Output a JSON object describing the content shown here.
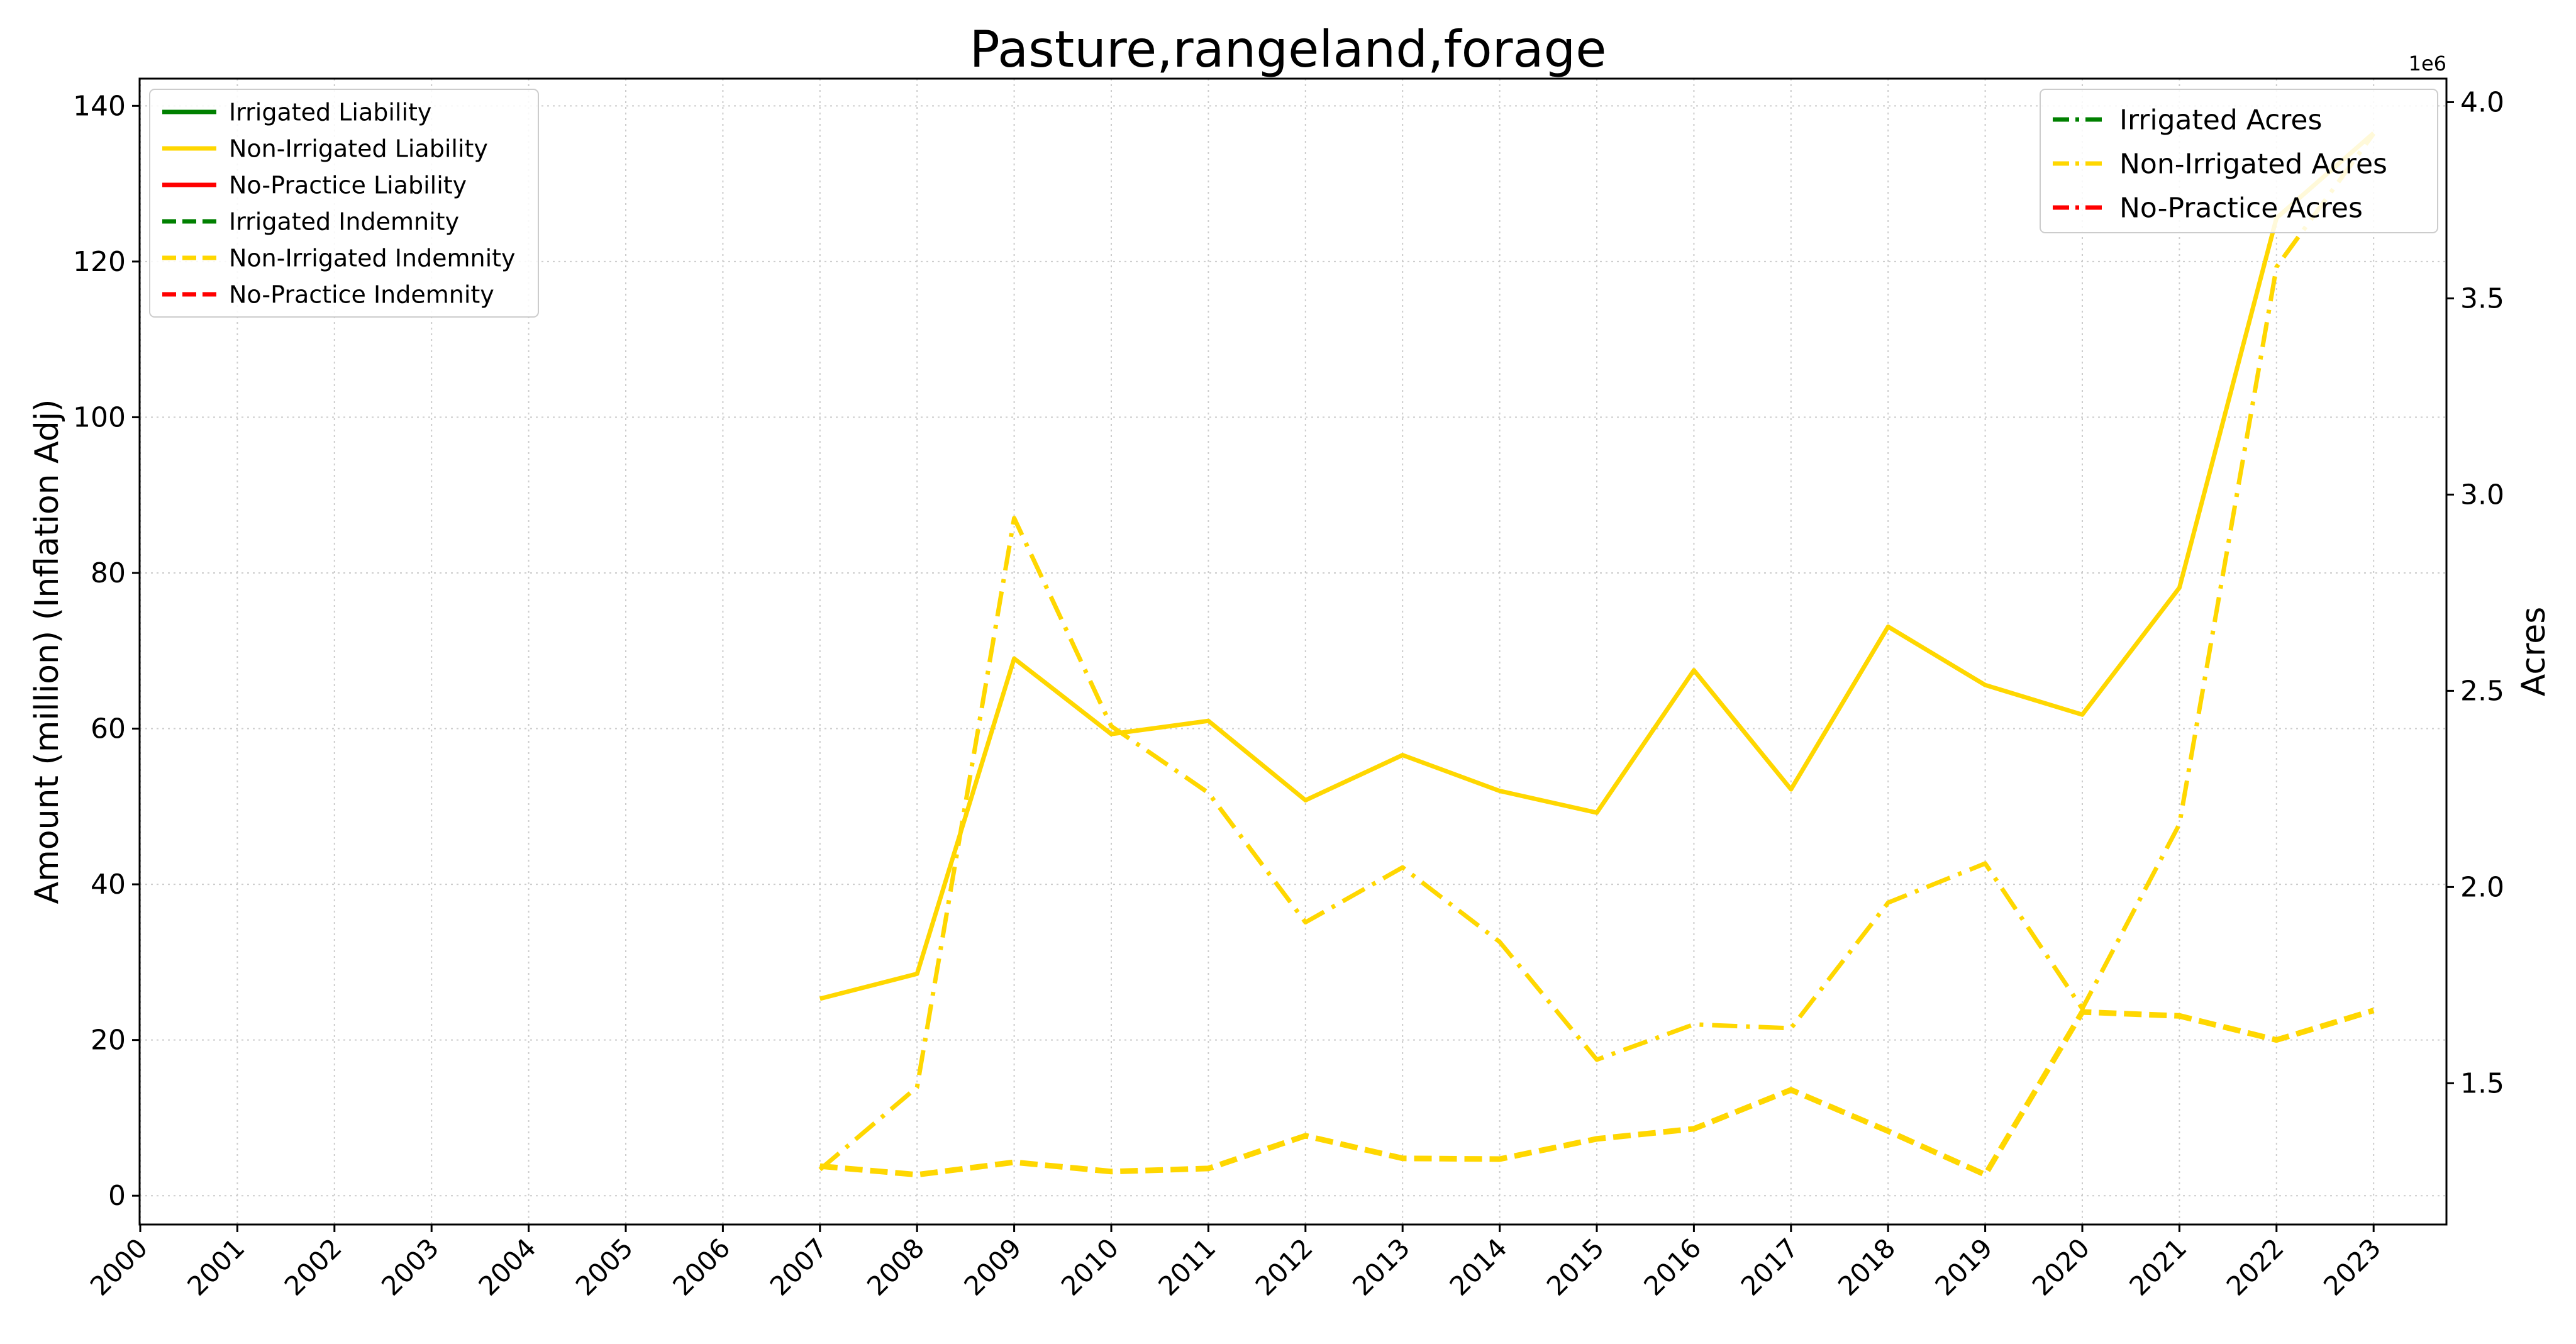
{
  "chart_data": {
    "type": "line",
    "title": "Pasture,rangeland,forage",
    "ylabel": "Amount (million) (Inflation Adj)",
    "y2label": "Acres",
    "y2_offset_label": "1e6",
    "categories": [
      "2000",
      "2001",
      "2002",
      "2003",
      "2004",
      "2005",
      "2006",
      "2007",
      "2008",
      "2009",
      "2010",
      "2011",
      "2012",
      "2013",
      "2014",
      "2015",
      "2016",
      "2017",
      "2018",
      "2019",
      "2020",
      "2021",
      "2022",
      "2023"
    ],
    "ylim": [
      -3.7,
      143.5
    ],
    "y2lim": [
      1140000,
      4060000
    ],
    "yticks": [
      0,
      20,
      40,
      60,
      80,
      100,
      120,
      140
    ],
    "y2ticks": [
      1500000,
      2000000,
      2500000,
      3000000,
      3500000,
      4000000
    ],
    "y2ticklabels": [
      "1.5",
      "2.0",
      "2.5",
      "3.0",
      "3.5",
      "4.0"
    ],
    "grid": true,
    "legend_left": {
      "position": "top-left",
      "entries": [
        {
          "label": "Irrigated Liability",
          "color": "#008000",
          "style": "solid"
        },
        {
          "label": "Non-Irrigated Liability",
          "color": "#FFD700",
          "style": "solid"
        },
        {
          "label": "No-Practice Liability",
          "color": "#FF0000",
          "style": "solid"
        },
        {
          "label": "Irrigated Indemnity",
          "color": "#008000",
          "style": "dashed"
        },
        {
          "label": "Non-Irrigated Indemnity",
          "color": "#FFD700",
          "style": "dashed"
        },
        {
          "label": "No-Practice Indemnity",
          "color": "#FF0000",
          "style": "dashed"
        }
      ]
    },
    "legend_right": {
      "position": "top-right",
      "entries": [
        {
          "label": "Irrigated Acres",
          "color": "#008000",
          "style": "dashdot"
        },
        {
          "label": "Non-Irrigated Acres",
          "color": "#FFD700",
          "style": "dashdot"
        },
        {
          "label": "No-Practice Acres",
          "color": "#FF0000",
          "style": "dashdot"
        }
      ]
    },
    "series": [
      {
        "name": "Non-Irrigated Liability",
        "axis": "left",
        "color": "#FFD700",
        "style": "solid",
        "x": [
          "2007",
          "2008",
          "2009",
          "2010",
          "2011",
          "2012",
          "2013",
          "2014",
          "2015",
          "2016",
          "2017",
          "2018",
          "2019",
          "2020",
          "2021",
          "2022",
          "2023"
        ],
        "values": [
          25.3,
          28.5,
          69.0,
          59.3,
          61.0,
          50.8,
          56.6,
          52.0,
          49.2,
          67.5,
          52.2,
          73.1,
          65.6,
          61.8,
          78.1,
          125.6,
          136.5
        ]
      },
      {
        "name": "Non-Irrigated Indemnity",
        "axis": "left",
        "color": "#FFD700",
        "style": "dashed",
        "x": [
          "2007",
          "2008",
          "2009",
          "2010",
          "2011",
          "2012",
          "2013",
          "2014",
          "2015",
          "2016",
          "2017",
          "2018",
          "2019",
          "2020",
          "2021",
          "2022",
          "2023"
        ],
        "values": [
          3.8,
          2.7,
          4.3,
          3.1,
          3.5,
          7.7,
          4.8,
          4.7,
          7.3,
          8.6,
          13.6,
          8.3,
          2.7,
          23.6,
          23.1,
          20.0,
          23.8
        ]
      },
      {
        "name": "Non-Irrigated Acres",
        "axis": "right",
        "color": "#FFD700",
        "style": "dashdot",
        "x": [
          "2007",
          "2008",
          "2009",
          "2010",
          "2011",
          "2012",
          "2013",
          "2014",
          "2015",
          "2016",
          "2017",
          "2018",
          "2019",
          "2020",
          "2021",
          "2022",
          "2023"
        ],
        "values": [
          1280000,
          1490000,
          2940000,
          2410000,
          2240000,
          1910000,
          2050000,
          1860000,
          1560000,
          1650000,
          1640000,
          1960000,
          2060000,
          1690000,
          2160000,
          3580000,
          3920000
        ]
      }
    ]
  }
}
